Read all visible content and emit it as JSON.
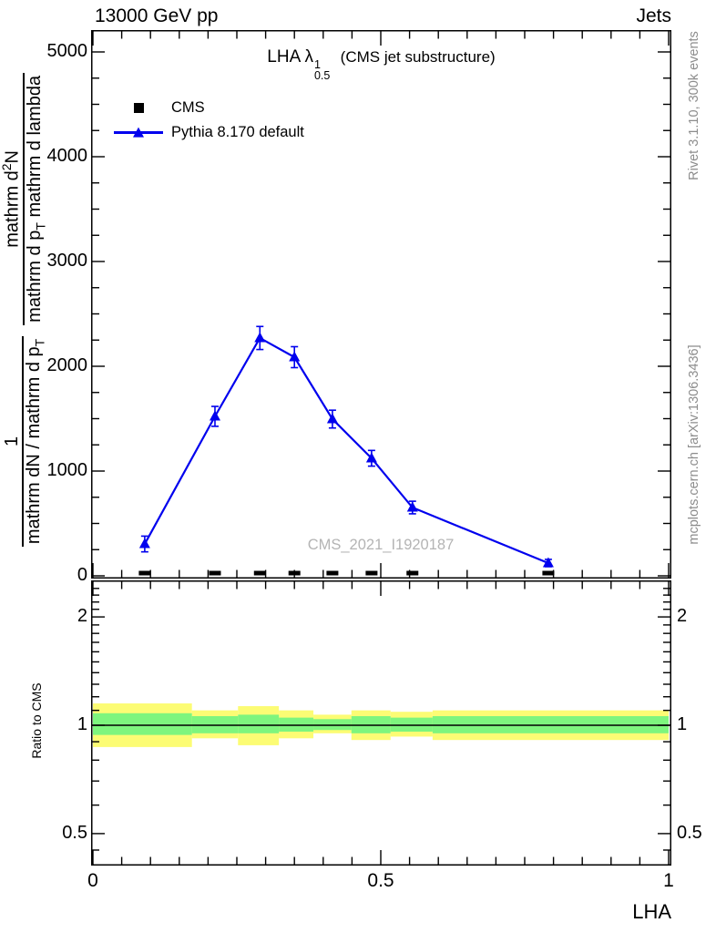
{
  "header": {
    "left": "13000 GeV pp",
    "right": "Jets"
  },
  "title": {
    "main": "LHA",
    "symbol": "λ",
    "sup": "1",
    "sub": "0.5",
    "paren": "(CMS jet substructure)"
  },
  "legend": {
    "items": [
      {
        "label": "CMS",
        "marker": "black-square"
      },
      {
        "label": "Pythia 8.170 default",
        "marker": "blue-triangle-line"
      }
    ]
  },
  "watermark": "CMS_2021_I1920187",
  "side_notes": {
    "top": "Rivet 3.1.10,  300k events",
    "bottom": "mcplots.cern.ch [arXiv:1306.3436]"
  },
  "ylabel": {
    "frac1": {
      "num": "1",
      "den_pre": "mathrm dN / mathrm d p",
      "den_sub": "T"
    },
    "frac2": {
      "num_pre": "mathrm d",
      "num_sup": "2",
      "num_post": "N",
      "den_pre": "mathrm d p",
      "den_sub": "T",
      "den_post": " mathrm d lambda"
    }
  },
  "colors": {
    "mc_blue": "#0000ee",
    "data_black": "#000000",
    "band_yellow": "#fcfc74",
    "band_green": "#7ef57e",
    "watermark_gray": "#b4b4b4",
    "note_gray": "#8c8c8c"
  },
  "chart_data": [
    {
      "type": "scatter",
      "title": "LHA lambda^1_0.5 (CMS jet substructure)",
      "xlabel": "LHA",
      "ylabel": "1/(dN/dp_T) d^2N/(dp_T dlambda)",
      "xlim": [
        0,
        1
      ],
      "ylim": [
        0,
        5209
      ],
      "grid": false,
      "legend_position": "top-left",
      "x": [
        0.09,
        0.212,
        0.29,
        0.35,
        0.416,
        0.484,
        0.555,
        0.791
      ],
      "series": [
        {
          "name": "CMS",
          "marker": "square",
          "color": "#000000",
          "values": [
            26,
            26,
            26,
            26,
            26,
            26,
            26,
            26
          ]
        },
        {
          "name": "Pythia 8.170 default",
          "marker": "triangle",
          "color": "#0000ee",
          "values": [
            304,
            1522,
            2270,
            2087,
            1496,
            1122,
            652,
            122
          ],
          "errors": [
            75,
            95,
            110,
            100,
            85,
            75,
            60,
            35
          ]
        }
      ],
      "y_ticks": {
        "majors": [
          0,
          1000,
          2000,
          3000,
          4000,
          5000
        ],
        "labels": [
          "0",
          "1000",
          "2000",
          "3000",
          "4000",
          "5000"
        ],
        "minor_step": 250
      },
      "x_ticks": {
        "majors": [
          0,
          0.5,
          1
        ],
        "labels": [
          "0",
          "0.5",
          "1"
        ],
        "minor_step": 0.05
      }
    },
    {
      "type": "area",
      "title": "Ratio to CMS",
      "yscale": "log",
      "ylim": [
        0.41,
        2.53
      ],
      "reference_line": 1.0,
      "band_edges": [
        0.0,
        0.172,
        0.252,
        0.323,
        0.383,
        0.449,
        0.517,
        0.59,
        1.0
      ],
      "yellow_band": [
        [
          0.87,
          1.15
        ],
        [
          0.92,
          1.1
        ],
        [
          0.88,
          1.13
        ],
        [
          0.92,
          1.1
        ],
        [
          0.95,
          1.07
        ],
        [
          0.91,
          1.1
        ],
        [
          0.93,
          1.09
        ],
        [
          0.91,
          1.1
        ]
      ],
      "green_band": [
        [
          0.94,
          1.08
        ],
        [
          0.95,
          1.06
        ],
        [
          0.95,
          1.07
        ],
        [
          0.96,
          1.05
        ],
        [
          0.97,
          1.04
        ],
        [
          0.95,
          1.06
        ],
        [
          0.96,
          1.05
        ],
        [
          0.95,
          1.06
        ]
      ],
      "y_ticks": {
        "majors": [
          0.5,
          1,
          2
        ],
        "labels": [
          "0.5",
          "1",
          "2"
        ],
        "minors": [
          0.45,
          0.6,
          0.7,
          0.8,
          0.9,
          1.1,
          1.2,
          1.3,
          1.4,
          1.5,
          1.6,
          1.7,
          1.8,
          1.9,
          2.1,
          2.2,
          2.3,
          2.4,
          2.5
        ]
      },
      "x_ticks": {
        "majors": [
          0,
          0.5,
          1
        ],
        "minor_step": 0.05
      }
    }
  ]
}
